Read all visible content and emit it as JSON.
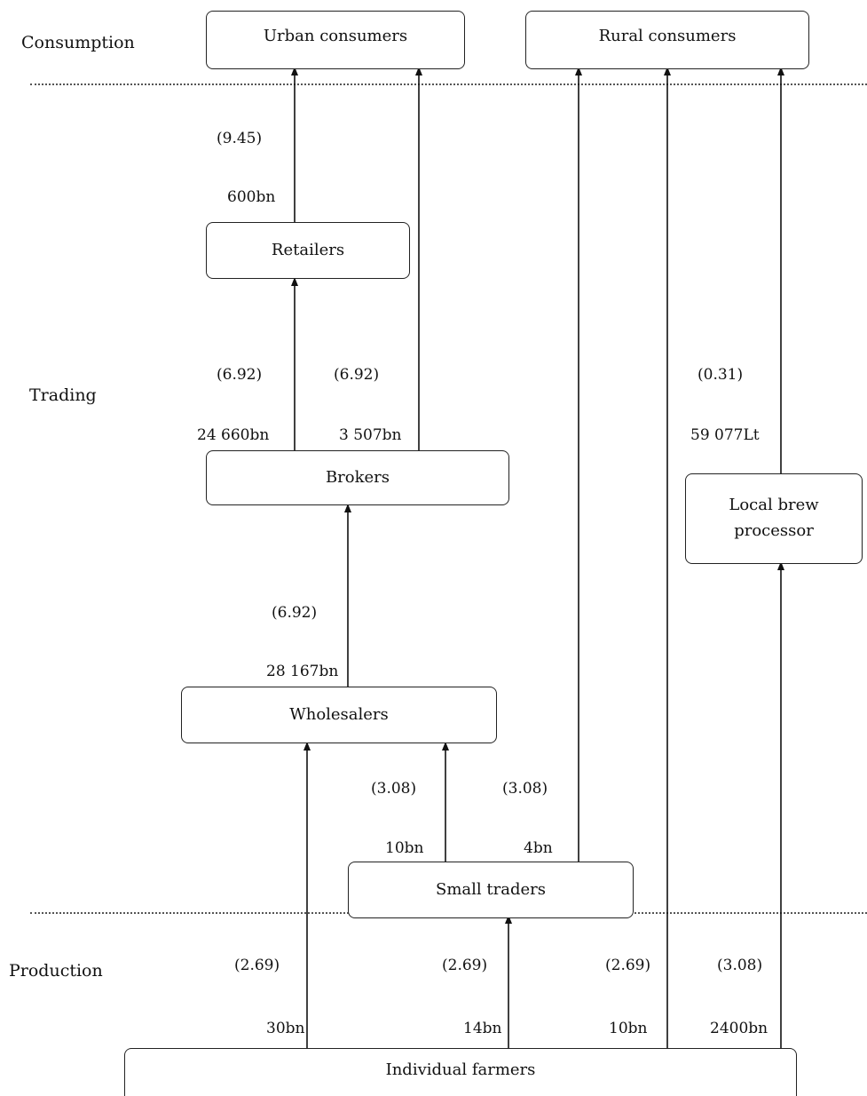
{
  "sections": {
    "consumption": "Consumption",
    "trading": "Trading",
    "production": "Production"
  },
  "nodes": {
    "urban": "Urban consumers",
    "rural": "Rural consumers",
    "retailers": "Retailers",
    "brokers": "Brokers",
    "local_brew_line1": "Local brew",
    "local_brew_line2": "processor",
    "wholesalers": "Wholesalers",
    "small_traders": "Small traders",
    "farmers": "Individual farmers"
  },
  "flows": {
    "retail_to_urban": {
      "price": "(9.45)",
      "volume": "600bn"
    },
    "broker_to_retail": {
      "price": "(6.92)",
      "volume": "24 660bn"
    },
    "broker_to_urban": {
      "price": "(6.92)",
      "volume": "3 507bn"
    },
    "brew_to_rural": {
      "price": "(0.31)",
      "volume": "59 077Lt"
    },
    "wholesale_to_broker": {
      "price": "(6.92)",
      "volume": "28 167bn"
    },
    "small_to_wholesale": {
      "price": "(3.08)",
      "volume": "10bn"
    },
    "small_to_rural": {
      "price": "(3.08)",
      "volume": "4bn"
    },
    "farm_to_wholesale": {
      "price": "(2.69)",
      "volume": "30bn"
    },
    "farm_to_small": {
      "price": "(2.69)",
      "volume": "14bn"
    },
    "farm_to_rural": {
      "price": "(2.69)",
      "volume": "10bn"
    },
    "farm_to_brew": {
      "price": "(3.08)",
      "volume": "2400bn"
    }
  }
}
